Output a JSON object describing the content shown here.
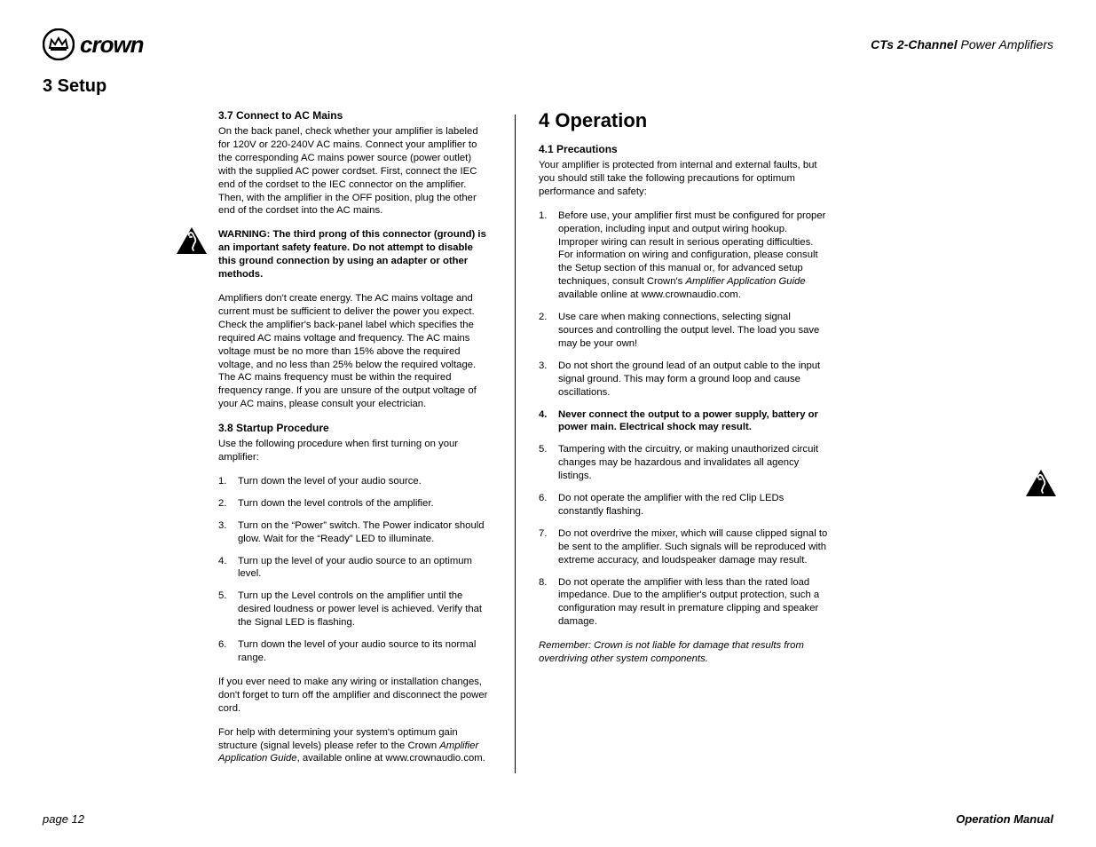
{
  "header": {
    "brand_word": "crown",
    "doc_title_bold": "CTs 2-Channel",
    "doc_title_rest": " Power Amplifiers"
  },
  "section_heading": "3 Setup",
  "col1": {
    "sub37": "3.7 Connect to AC Mains",
    "p37": "On the back panel, check whether your amplifier is labeled for 120V or 220-240V AC mains. Connect your amplifier to the corresponding AC mains power source (power outlet) with the supplied AC power cordset. First, connect the IEC end of the cordset to the IEC connector on the amplifier. Then, with the amplifier in the OFF position, plug the other end of the cordset into the AC mains.",
    "warning": "WARNING: The third prong of this connector (ground) is an important safety feature. Do not attempt to disable this ground connection by using an adapter or other methods.",
    "p37b": "Amplifiers don't create energy. The AC mains voltage and current must be sufficient to deliver the power you expect. Check the amplifier's back-panel label which specifies the required AC mains voltage and frequency. The AC mains voltage must be no more than 15% above the required voltage, and no less than 25% below the required voltage. The AC mains frequency must be within the required frequency range. If you are unsure of the output voltage of your AC mains, please consult your electrician.",
    "sub38": "3.8 Startup Procedure",
    "p38a": "Use the following procedure when first turning on your amplifier:",
    "list38": [
      "Turn down the level of your audio source.",
      "Turn down the level controls of the amplifier.",
      "Turn on the “Power” switch. The Power indicator should glow. Wait for the “Ready” LED to illuminate.",
      "Turn up the level of your audio source to an optimum level.",
      "Turn up the Level controls on the amplifier until the desired loudness or power level is achieved. Verify that the Signal LED is flashing.",
      "Turn down the level of your audio source to its normal range."
    ],
    "p38b": "If you ever need to make any wiring or installation changes, don't forget to turn off the amplifier and disconnect the power cord.",
    "p38c_pre": "For help with determining your system's optimum gain structure (signal levels) please refer to the Crown ",
    "p38c_ital": "Amplifier Application Guide",
    "p38c_post": ", available online at www.crownaudio.com."
  },
  "col2": {
    "heading": "4 Operation",
    "sub41": "4.1 Precautions",
    "p41": "Your amplifier is protected from internal and external faults, but you should still take the following precautions for optimum performance and safety:",
    "list41": [
      {
        "text_pre": "Before use, your amplifier first must be configured for proper operation, including input and output wiring hookup. Improper wiring can result in serious operating difficulties. For information on wiring and configuration, please consult the Setup section of this manual or, for advanced setup techniques, consult Crown's ",
        "ital": "Amplifier Application Guide",
        "text_post": " available online at www.crownaudio.com.",
        "bold": false
      },
      {
        "text": "Use care when making connections, selecting signal sources and controlling the output level. The load you save may be your own!",
        "bold": false
      },
      {
        "text": "Do not short the ground lead of an output cable to the input signal ground. This may form a ground loop and cause oscillations.",
        "bold": false
      },
      {
        "text": "Never connect the output to a power supply, battery or power main. Electrical shock may result.",
        "bold": true
      },
      {
        "text": "Tampering with the circuitry, or making unauthorized circuit changes may be hazardous and invalidates all agency listings.",
        "bold": false
      },
      {
        "text": "Do not operate the amplifier with the red Clip LEDs constantly flashing.",
        "bold": false
      },
      {
        "text": "Do not overdrive the mixer, which will cause clipped signal to be sent to the amplifier. Such signals will be reproduced with extreme accuracy, and loudspeaker damage may result.",
        "bold": false
      },
      {
        "text": "Do not operate the amplifier with less than the rated load impedance. Due to the amplifier's output protection, such a configuration may result in premature clipping and speaker damage.",
        "bold": false
      }
    ],
    "remember": "Remember: Crown is not liable for damage that results from overdriving other system components."
  },
  "footer": {
    "left": "page 12",
    "right": "Operation Manual"
  }
}
